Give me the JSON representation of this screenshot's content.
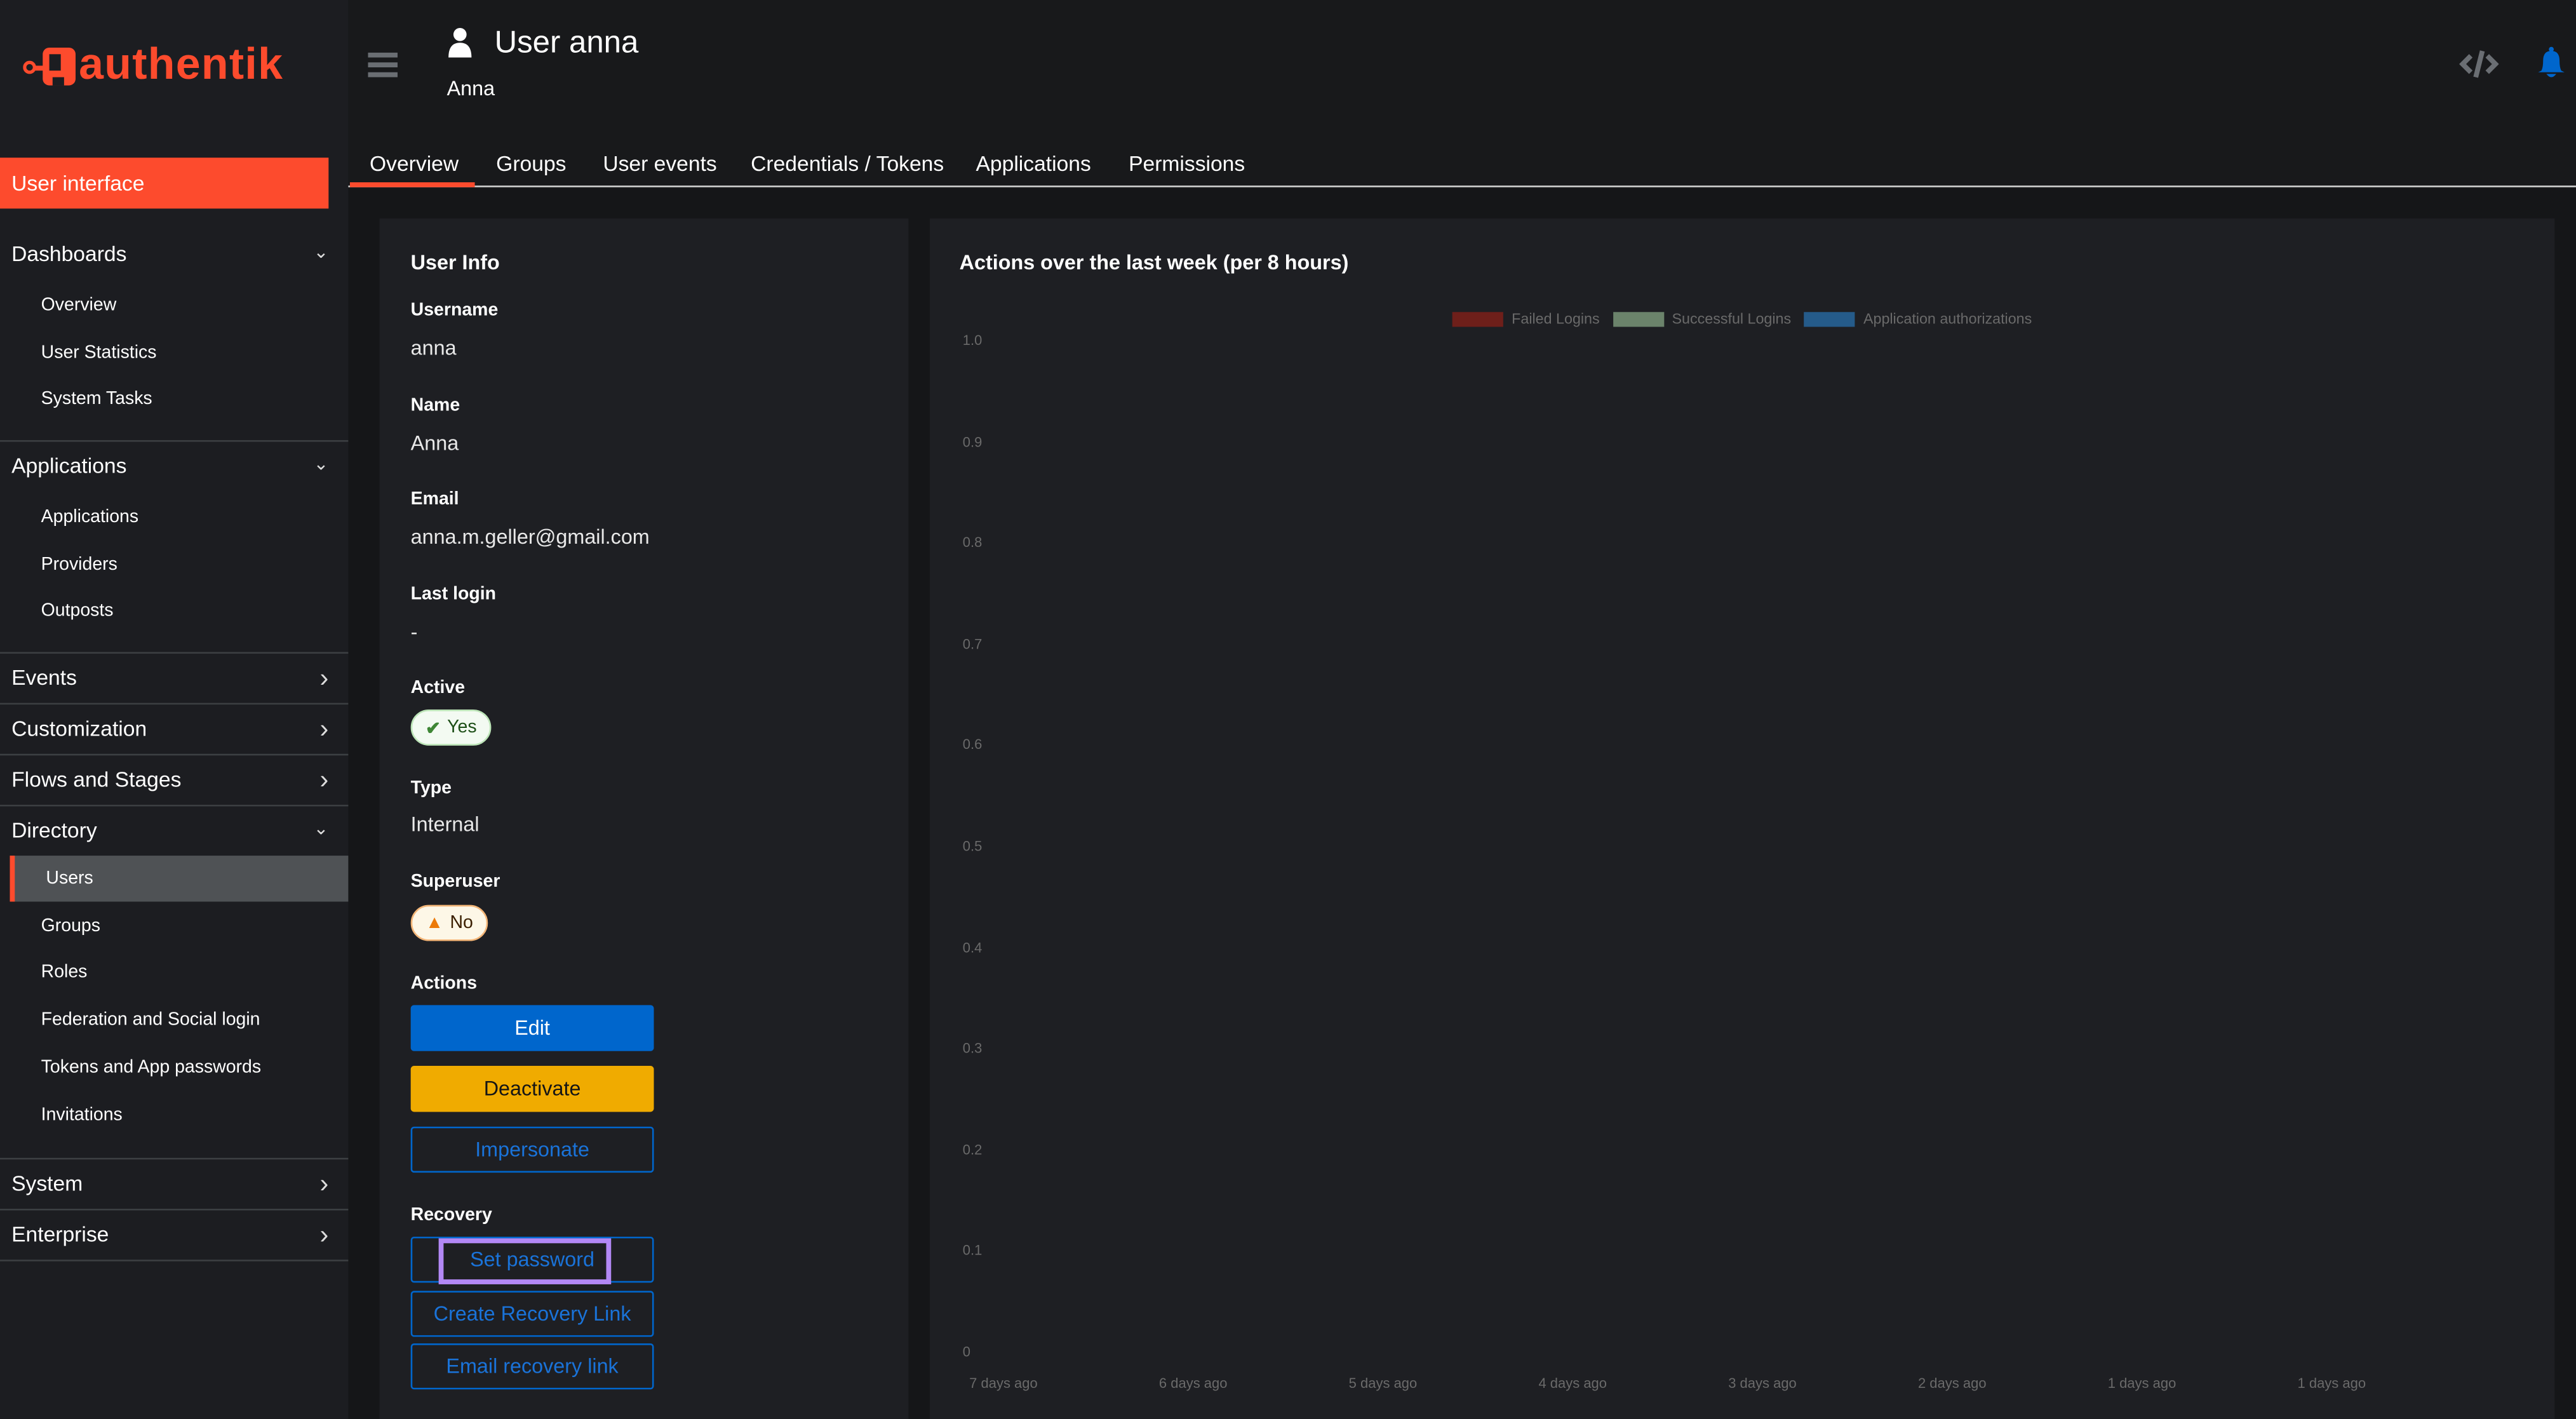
{
  "brand": {
    "name": "authentik",
    "color": "#fd4b2d"
  },
  "sidebar": {
    "user_interface": "User interface",
    "sections": [
      {
        "label": "Dashboards",
        "expanded": true,
        "items": [
          "Overview",
          "User Statistics",
          "System Tasks"
        ]
      },
      {
        "label": "Applications",
        "expanded": true,
        "items": [
          "Applications",
          "Providers",
          "Outposts"
        ]
      },
      {
        "label": "Events",
        "expanded": false
      },
      {
        "label": "Customization",
        "expanded": false
      },
      {
        "label": "Flows and Stages",
        "expanded": false
      },
      {
        "label": "Directory",
        "expanded": true,
        "items": [
          "Users",
          "Groups",
          "Roles",
          "Federation and Social login",
          "Tokens and App passwords",
          "Invitations"
        ],
        "active": "Users"
      },
      {
        "label": "System",
        "expanded": false
      },
      {
        "label": "Enterprise",
        "expanded": false
      }
    ]
  },
  "header": {
    "title": "User anna",
    "subtitle": "Anna",
    "icons": [
      "menu-icon",
      "user-icon",
      "api-code-icon",
      "notification-bell-icon"
    ]
  },
  "tabs": [
    "Overview",
    "Groups",
    "User events",
    "Credentials / Tokens",
    "Applications",
    "Permissions"
  ],
  "active_tab": "Overview",
  "user_info": {
    "title": "User Info",
    "fields": [
      {
        "label": "Username",
        "value": "anna"
      },
      {
        "label": "Name",
        "value": "Anna"
      },
      {
        "label": "Email",
        "value": "anna.m.geller@gmail.com"
      },
      {
        "label": "Last login",
        "value": "-"
      }
    ],
    "active": {
      "label": "Active",
      "value": "Yes"
    },
    "type": {
      "label": "Type",
      "value": "Internal"
    },
    "superuser": {
      "label": "Superuser",
      "value": "No"
    },
    "actions": {
      "label": "Actions",
      "edit": "Edit",
      "deactivate": "Deactivate",
      "impersonate": "Impersonate"
    },
    "recovery": {
      "label": "Recovery",
      "set_password": "Set password",
      "create_link": "Create Recovery Link",
      "email_link": "Email recovery link"
    }
  },
  "chart_data": {
    "type": "bar",
    "title": "Actions over the last week (per 8 hours)",
    "categories": [
      "7 days ago",
      "6 days ago",
      "5 days ago",
      "4 days ago",
      "3 days ago",
      "2 days ago",
      "1 days ago",
      "1 days ago"
    ],
    "series": [
      {
        "name": "Failed Logins",
        "color": "#6e1f1a",
        "values": [
          0,
          0,
          0,
          0,
          0,
          0,
          0,
          0
        ]
      },
      {
        "name": "Successful Logins",
        "color": "#6b836b",
        "values": [
          0,
          0,
          0,
          0,
          0,
          0,
          0,
          0
        ]
      },
      {
        "name": "Application authorizations",
        "color": "#255b8a",
        "values": [
          0,
          0,
          0,
          0,
          0,
          0,
          0,
          0
        ]
      }
    ],
    "yticks": [
      "1.0",
      "0.9",
      "0.8",
      "0.7",
      "0.6",
      "0.5",
      "0.4",
      "0.3",
      "0.2",
      "0.1",
      "0"
    ],
    "ylim": [
      0,
      1
    ],
    "legend": "top"
  }
}
